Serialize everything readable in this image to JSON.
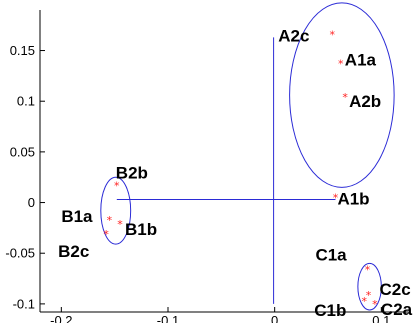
{
  "colors": {
    "axis": "#000000",
    "line": "#2b2bd6",
    "marker": "#ff2020",
    "background": "#ffffff"
  },
  "chart_data": {
    "type": "scatter",
    "title": "",
    "xlabel": "",
    "ylabel": "",
    "xlim": [
      -0.22,
      0.125
    ],
    "ylim": [
      -0.108,
      0.19
    ],
    "x_tick_values": [
      -0.2,
      -0.1,
      0,
      0.1
    ],
    "x_tick_labels": [
      "-0.2",
      "-0.1",
      "0",
      "0.1"
    ],
    "y_tick_values": [
      0.15,
      0.1,
      0.05,
      0,
      -0.05,
      -0.1
    ],
    "y_tick_labels": [
      "0.15",
      "0.1",
      "0.05",
      "0",
      "-0.05",
      "-0.1"
    ],
    "grid": false,
    "box": "left-bottom",
    "marker": "*",
    "points": [
      {
        "label": "A2c",
        "x": 0.054,
        "y": 0.166
      },
      {
        "label": "A1a",
        "x": 0.062,
        "y": 0.137
      },
      {
        "label": "A2b",
        "x": 0.066,
        "y": 0.104
      },
      {
        "label": "A1b",
        "x": 0.057,
        "y": 0.005
      },
      {
        "label": "B2b",
        "x": -0.148,
        "y": 0.017
      },
      {
        "label": "B1a",
        "x": -0.155,
        "y": -0.017
      },
      {
        "label": "B1b",
        "x": -0.145,
        "y": -0.021
      },
      {
        "label": "B2c",
        "x": -0.158,
        "y": -0.031
      },
      {
        "label": "C1a",
        "x": 0.087,
        "y": -0.066
      },
      {
        "label": "C2c",
        "x": 0.088,
        "y": -0.091
      },
      {
        "label": "C1b",
        "x": 0.084,
        "y": -0.097
      },
      {
        "label": "C2a",
        "x": 0.094,
        "y": -0.1
      }
    ],
    "cluster_ellipses": [
      {
        "cx": 0.063,
        "cy": 0.106,
        "rx": 0.049,
        "ry": 0.091
      },
      {
        "cx": -0.149,
        "cy": -0.008,
        "rx": 0.014,
        "ry": 0.033
      },
      {
        "cx": 0.089,
        "cy": -0.083,
        "rx": 0.011,
        "ry": 0.023
      }
    ],
    "tree_lines": [
      {
        "x": [
          -0.148,
          0.057
        ],
        "y": [
          0.003,
          0.003
        ]
      },
      {
        "x": [
          -0.001,
          -0.001
        ],
        "y": [
          -0.1,
          0.163
        ]
      }
    ]
  }
}
